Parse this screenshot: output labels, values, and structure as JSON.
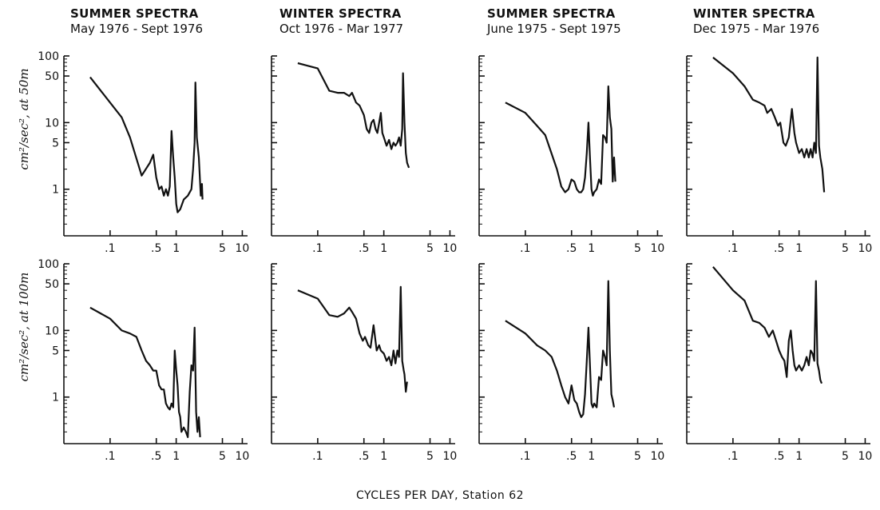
{
  "figure": {
    "xlabel": "CYCLES PER DAY, Station 62",
    "rows": [
      {
        "ylabel": "cm²/sec², at 50m"
      },
      {
        "ylabel": "cm²/sec², at 100m"
      }
    ],
    "columns": [
      {
        "title": "SUMMER SPECTRA",
        "subtitle": "May 1976 - Sept 1976"
      },
      {
        "title": "WINTER SPECTRA",
        "subtitle": "Oct 1976 - Mar 1977"
      },
      {
        "title": "SUMMER SPECTRA",
        "subtitle": "June 1975 - Sept 1975"
      },
      {
        "title": "WINTER SPECTRA",
        "subtitle": "Dec 1975 - Mar 1976"
      }
    ]
  },
  "chart_data": {
    "type": "line",
    "xscale": "log",
    "yscale": "log",
    "xlim": [
      0.02,
      12
    ],
    "ylim": [
      0.2,
      100
    ],
    "xticks": [
      0.1,
      0.5,
      1,
      5,
      10
    ],
    "xticklabels": [
      ".1",
      ".5",
      "1",
      "5",
      "10"
    ],
    "yticks": [
      100,
      50,
      10,
      5,
      1
    ],
    "yticklabels": [
      "100",
      "50",
      "10",
      "5",
      "1"
    ],
    "grid": false,
    "panels": [
      {
        "row": 0,
        "col": 0,
        "points": [
          [
            0.05,
            48
          ],
          [
            0.15,
            12
          ],
          [
            0.2,
            6
          ],
          [
            0.3,
            1.6
          ],
          [
            0.4,
            2.5
          ],
          [
            0.45,
            3.3
          ],
          [
            0.5,
            1.5
          ],
          [
            0.55,
            1.0
          ],
          [
            0.6,
            1.1
          ],
          [
            0.65,
            0.8
          ],
          [
            0.7,
            1.0
          ],
          [
            0.75,
            0.8
          ],
          [
            0.8,
            1.1
          ],
          [
            0.85,
            7.5
          ],
          [
            0.9,
            3.0
          ],
          [
            0.95,
            1.5
          ],
          [
            1.0,
            0.6
          ],
          [
            1.05,
            0.45
          ],
          [
            1.15,
            0.5
          ],
          [
            1.3,
            0.7
          ],
          [
            1.5,
            0.8
          ],
          [
            1.7,
            1.0
          ],
          [
            1.8,
            2.0
          ],
          [
            1.9,
            5.0
          ],
          [
            1.95,
            40
          ],
          [
            2.05,
            6.0
          ],
          [
            2.2,
            3.0
          ],
          [
            2.35,
            0.8
          ],
          [
            2.45,
            1.2
          ],
          [
            2.5,
            0.7
          ]
        ]
      },
      {
        "row": 0,
        "col": 1,
        "points": [
          [
            0.05,
            78
          ],
          [
            0.1,
            65
          ],
          [
            0.15,
            30
          ],
          [
            0.2,
            28
          ],
          [
            0.25,
            28
          ],
          [
            0.3,
            25
          ],
          [
            0.33,
            28
          ],
          [
            0.38,
            20
          ],
          [
            0.43,
            18
          ],
          [
            0.5,
            13
          ],
          [
            0.55,
            8
          ],
          [
            0.6,
            7
          ],
          [
            0.65,
            10
          ],
          [
            0.7,
            11
          ],
          [
            0.75,
            8
          ],
          [
            0.8,
            7
          ],
          [
            0.9,
            14
          ],
          [
            0.95,
            7
          ],
          [
            1.0,
            6
          ],
          [
            1.1,
            4.5
          ],
          [
            1.2,
            5.5
          ],
          [
            1.3,
            4
          ],
          [
            1.4,
            5
          ],
          [
            1.5,
            4.5
          ],
          [
            1.6,
            5
          ],
          [
            1.7,
            6
          ],
          [
            1.8,
            4.5
          ],
          [
            1.9,
            8
          ],
          [
            1.95,
            55
          ],
          [
            2.05,
            10
          ],
          [
            2.15,
            3.5
          ],
          [
            2.25,
            2.5
          ],
          [
            2.4,
            2.1
          ]
        ]
      },
      {
        "row": 0,
        "col": 2,
        "points": [
          [
            0.05,
            20
          ],
          [
            0.1,
            14
          ],
          [
            0.15,
            9
          ],
          [
            0.2,
            6.5
          ],
          [
            0.3,
            2
          ],
          [
            0.35,
            1.1
          ],
          [
            0.4,
            0.9
          ],
          [
            0.45,
            1.0
          ],
          [
            0.5,
            1.4
          ],
          [
            0.55,
            1.3
          ],
          [
            0.6,
            1.0
          ],
          [
            0.65,
            0.9
          ],
          [
            0.7,
            0.9
          ],
          [
            0.75,
            1.0
          ],
          [
            0.8,
            1.5
          ],
          [
            0.85,
            3.5
          ],
          [
            0.9,
            10
          ],
          [
            0.95,
            3
          ],
          [
            1.0,
            1.0
          ],
          [
            1.05,
            0.8
          ],
          [
            1.1,
            0.9
          ],
          [
            1.2,
            1.0
          ],
          [
            1.3,
            1.4
          ],
          [
            1.4,
            1.2
          ],
          [
            1.5,
            6.5
          ],
          [
            1.6,
            6
          ],
          [
            1.7,
            5
          ],
          [
            1.8,
            35
          ],
          [
            1.9,
            12
          ],
          [
            2.0,
            8
          ],
          [
            2.1,
            1.3
          ],
          [
            2.2,
            3
          ],
          [
            2.3,
            1.3
          ]
        ]
      },
      {
        "row": 0,
        "col": 3,
        "points": [
          [
            0.05,
            95
          ],
          [
            0.1,
            55
          ],
          [
            0.15,
            35
          ],
          [
            0.2,
            22
          ],
          [
            0.25,
            20
          ],
          [
            0.3,
            18
          ],
          [
            0.33,
            14
          ],
          [
            0.38,
            16
          ],
          [
            0.43,
            12
          ],
          [
            0.48,
            9
          ],
          [
            0.52,
            10
          ],
          [
            0.58,
            5
          ],
          [
            0.63,
            4.5
          ],
          [
            0.7,
            6
          ],
          [
            0.78,
            16
          ],
          [
            0.85,
            7
          ],
          [
            0.9,
            5
          ],
          [
            1.0,
            3.5
          ],
          [
            1.1,
            4
          ],
          [
            1.2,
            3
          ],
          [
            1.3,
            4
          ],
          [
            1.4,
            3
          ],
          [
            1.5,
            4
          ],
          [
            1.6,
            3
          ],
          [
            1.7,
            5
          ],
          [
            1.8,
            3.5
          ],
          [
            1.9,
            95
          ],
          [
            2.0,
            4.5
          ],
          [
            2.1,
            3
          ],
          [
            2.25,
            2
          ],
          [
            2.4,
            0.9
          ]
        ]
      },
      {
        "row": 1,
        "col": 0,
        "points": [
          [
            0.05,
            22
          ],
          [
            0.1,
            15
          ],
          [
            0.15,
            10
          ],
          [
            0.2,
            9
          ],
          [
            0.25,
            8
          ],
          [
            0.3,
            5
          ],
          [
            0.35,
            3.5
          ],
          [
            0.4,
            3
          ],
          [
            0.45,
            2.5
          ],
          [
            0.5,
            2.5
          ],
          [
            0.55,
            1.5
          ],
          [
            0.6,
            1.3
          ],
          [
            0.65,
            1.3
          ],
          [
            0.7,
            0.8
          ],
          [
            0.75,
            0.7
          ],
          [
            0.8,
            0.65
          ],
          [
            0.85,
            0.8
          ],
          [
            0.9,
            0.7
          ],
          [
            0.95,
            5
          ],
          [
            1.0,
            2.5
          ],
          [
            1.05,
            1.5
          ],
          [
            1.1,
            0.6
          ],
          [
            1.15,
            0.5
          ],
          [
            1.2,
            0.3
          ],
          [
            1.3,
            0.35
          ],
          [
            1.4,
            0.3
          ],
          [
            1.5,
            0.25
          ],
          [
            1.6,
            1.2
          ],
          [
            1.7,
            3
          ],
          [
            1.8,
            2.5
          ],
          [
            1.9,
            11
          ],
          [
            2.0,
            0.6
          ],
          [
            2.1,
            0.3
          ],
          [
            2.2,
            0.5
          ],
          [
            2.3,
            0.25
          ]
        ]
      },
      {
        "row": 1,
        "col": 1,
        "points": [
          [
            0.05,
            40
          ],
          [
            0.1,
            30
          ],
          [
            0.15,
            17
          ],
          [
            0.2,
            16
          ],
          [
            0.25,
            18
          ],
          [
            0.3,
            22
          ],
          [
            0.33,
            19
          ],
          [
            0.38,
            15
          ],
          [
            0.43,
            9
          ],
          [
            0.48,
            7
          ],
          [
            0.52,
            8
          ],
          [
            0.58,
            6
          ],
          [
            0.63,
            5.5
          ],
          [
            0.7,
            12
          ],
          [
            0.78,
            5
          ],
          [
            0.85,
            6
          ],
          [
            0.9,
            5
          ],
          [
            1.0,
            4.5
          ],
          [
            1.1,
            3.5
          ],
          [
            1.2,
            4
          ],
          [
            1.3,
            3
          ],
          [
            1.4,
            5
          ],
          [
            1.5,
            3.2
          ],
          [
            1.6,
            5
          ],
          [
            1.7,
            4
          ],
          [
            1.8,
            45
          ],
          [
            1.9,
            3.5
          ],
          [
            2.0,
            2.5
          ],
          [
            2.05,
            2.2
          ],
          [
            2.15,
            1.2
          ],
          [
            2.25,
            1.7
          ]
        ]
      },
      {
        "row": 1,
        "col": 2,
        "points": [
          [
            0.05,
            14
          ],
          [
            0.1,
            9
          ],
          [
            0.15,
            6
          ],
          [
            0.2,
            5
          ],
          [
            0.25,
            4
          ],
          [
            0.3,
            2.5
          ],
          [
            0.35,
            1.5
          ],
          [
            0.4,
            1.0
          ],
          [
            0.45,
            0.8
          ],
          [
            0.5,
            1.5
          ],
          [
            0.55,
            0.9
          ],
          [
            0.6,
            0.8
          ],
          [
            0.65,
            0.6
          ],
          [
            0.7,
            0.5
          ],
          [
            0.75,
            0.55
          ],
          [
            0.8,
            1.1
          ],
          [
            0.85,
            3.5
          ],
          [
            0.9,
            11
          ],
          [
            0.95,
            3
          ],
          [
            1.0,
            0.8
          ],
          [
            1.05,
            0.7
          ],
          [
            1.1,
            0.8
          ],
          [
            1.2,
            0.7
          ],
          [
            1.3,
            2
          ],
          [
            1.4,
            1.8
          ],
          [
            1.5,
            5
          ],
          [
            1.6,
            4
          ],
          [
            1.7,
            3
          ],
          [
            1.8,
            55
          ],
          [
            1.9,
            5
          ],
          [
            2.0,
            1.1
          ],
          [
            2.1,
            0.9
          ],
          [
            2.2,
            0.7
          ]
        ]
      },
      {
        "row": 1,
        "col": 3,
        "points": [
          [
            0.05,
            90
          ],
          [
            0.1,
            40
          ],
          [
            0.15,
            28
          ],
          [
            0.2,
            14
          ],
          [
            0.25,
            13
          ],
          [
            0.3,
            11
          ],
          [
            0.35,
            8
          ],
          [
            0.4,
            10
          ],
          [
            0.45,
            7
          ],
          [
            0.5,
            5
          ],
          [
            0.55,
            4
          ],
          [
            0.6,
            3.5
          ],
          [
            0.65,
            2
          ],
          [
            0.7,
            7
          ],
          [
            0.75,
            10
          ],
          [
            0.8,
            5
          ],
          [
            0.85,
            3
          ],
          [
            0.9,
            2.5
          ],
          [
            1.0,
            3
          ],
          [
            1.1,
            2.5
          ],
          [
            1.2,
            3
          ],
          [
            1.3,
            4
          ],
          [
            1.4,
            3
          ],
          [
            1.5,
            5
          ],
          [
            1.6,
            4.5
          ],
          [
            1.7,
            3.5
          ],
          [
            1.8,
            55
          ],
          [
            1.9,
            3.2
          ],
          [
            2.0,
            2.5
          ],
          [
            2.1,
            1.8
          ],
          [
            2.2,
            1.6
          ]
        ]
      }
    ]
  }
}
